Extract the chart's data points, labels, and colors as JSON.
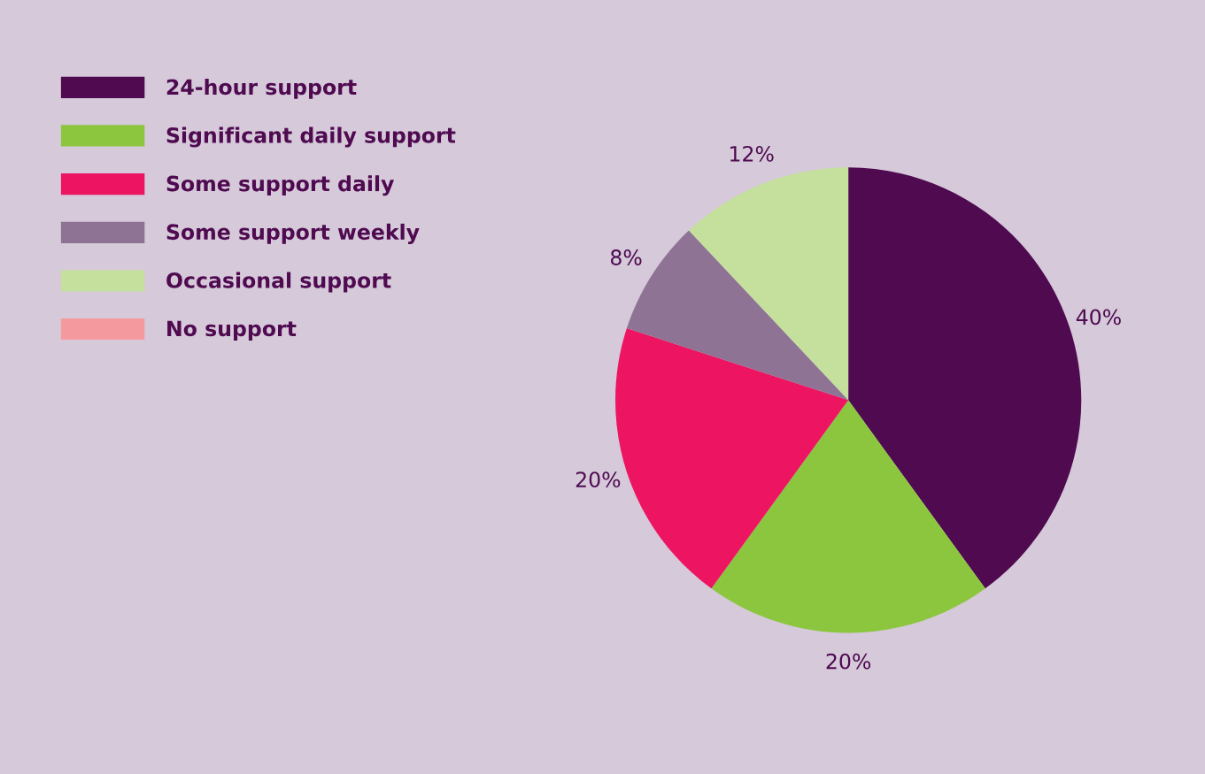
{
  "chart_data": {
    "type": "pie",
    "categories": [
      "24-hour support",
      "Significant daily support",
      "Some support daily",
      "Some support weekly",
      "Occasional support",
      "No support"
    ],
    "values": [
      40,
      20,
      20,
      8,
      12,
      0
    ],
    "colors": [
      "#4f0a50",
      "#8cc63f",
      "#ed1561",
      "#8f7395",
      "#c5e09c",
      "#f49a9f"
    ],
    "value_labels": [
      "40%",
      "20%",
      "20%",
      "8%",
      "12%",
      null
    ],
    "legend": "top left"
  }
}
